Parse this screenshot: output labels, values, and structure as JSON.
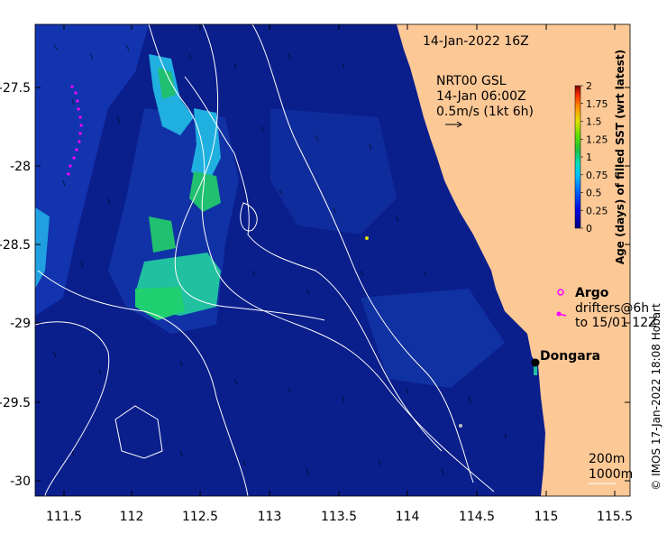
{
  "map": {
    "date_label": "14-Jan-2022 16Z",
    "current_info": {
      "line1": "NRT00 GSL",
      "line2": "14-Jan 06:00Z",
      "line3": "0.5m/s (1kt 6h)"
    },
    "argo_label": "Argo",
    "drifters_line1": "drifters@6h",
    "drifters_line2": "to 15/01 12Z",
    "place_label": "Dongara",
    "contour_labels": [
      "200m",
      "1000m"
    ],
    "credit": "© IMOS 17-Jan-2022 18:08 Hobart",
    "colors": {
      "ocean": "#0a1e8c",
      "land": "#fcc896",
      "argo": "#ff00ff"
    }
  },
  "axes": {
    "x_ticks": [
      "111.5",
      "112",
      "112.5",
      "113",
      "113.5",
      "114",
      "114.5",
      "115",
      "115.5"
    ],
    "y_ticks": [
      "-27.5",
      "-28",
      "-28.5",
      "-29",
      "-29.5",
      "-30"
    ]
  },
  "colorbar": {
    "title": "Age (days) of filled SST (wrt latest)",
    "ticks": [
      "2",
      "1.75",
      "1.5",
      "1.25",
      "1",
      "0.75",
      "0.5",
      "0.25",
      "0"
    ],
    "range": [
      0,
      2
    ],
    "colormap": [
      "#000080",
      "#0000ff",
      "#00a0ff",
      "#00e0e0",
      "#20c060",
      "#80e000",
      "#e0e000",
      "#ffa000",
      "#ff4000",
      "#800000"
    ]
  }
}
